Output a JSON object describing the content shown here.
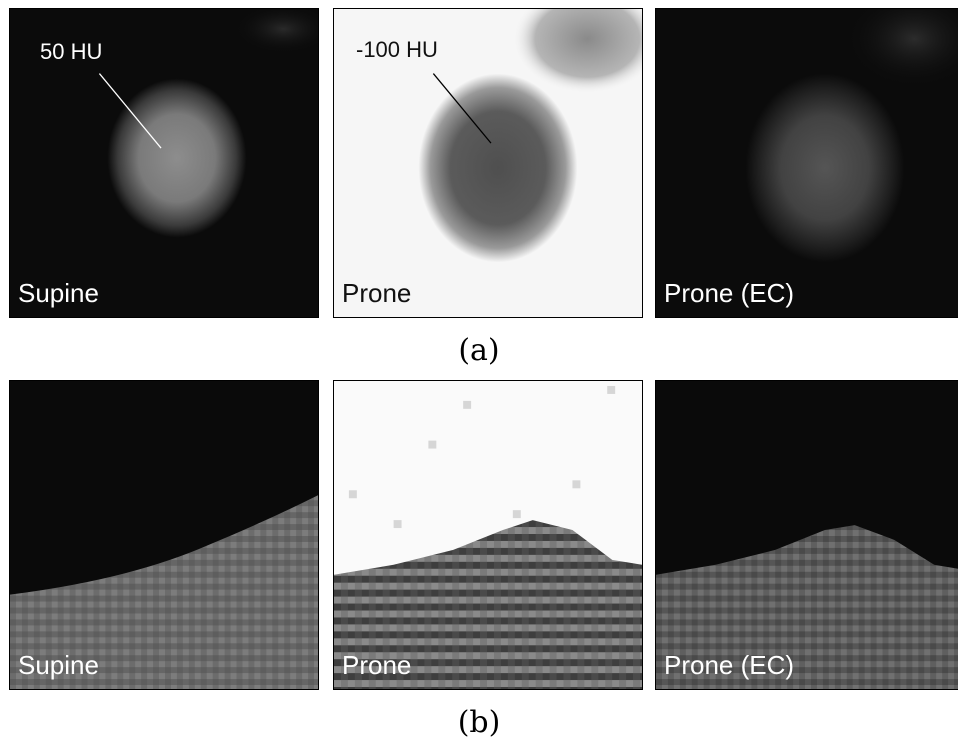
{
  "row_a": {
    "caption": "(a)",
    "panels": [
      {
        "label": "Supine",
        "annotation": "50 HU"
      },
      {
        "label": "Prone",
        "annotation": "-100 HU"
      },
      {
        "label": "Prone (EC)"
      }
    ]
  },
  "row_b": {
    "caption": "(b)",
    "panels": [
      {
        "label": "Supine"
      },
      {
        "label": "Prone"
      },
      {
        "label": "Prone (EC)"
      }
    ]
  }
}
